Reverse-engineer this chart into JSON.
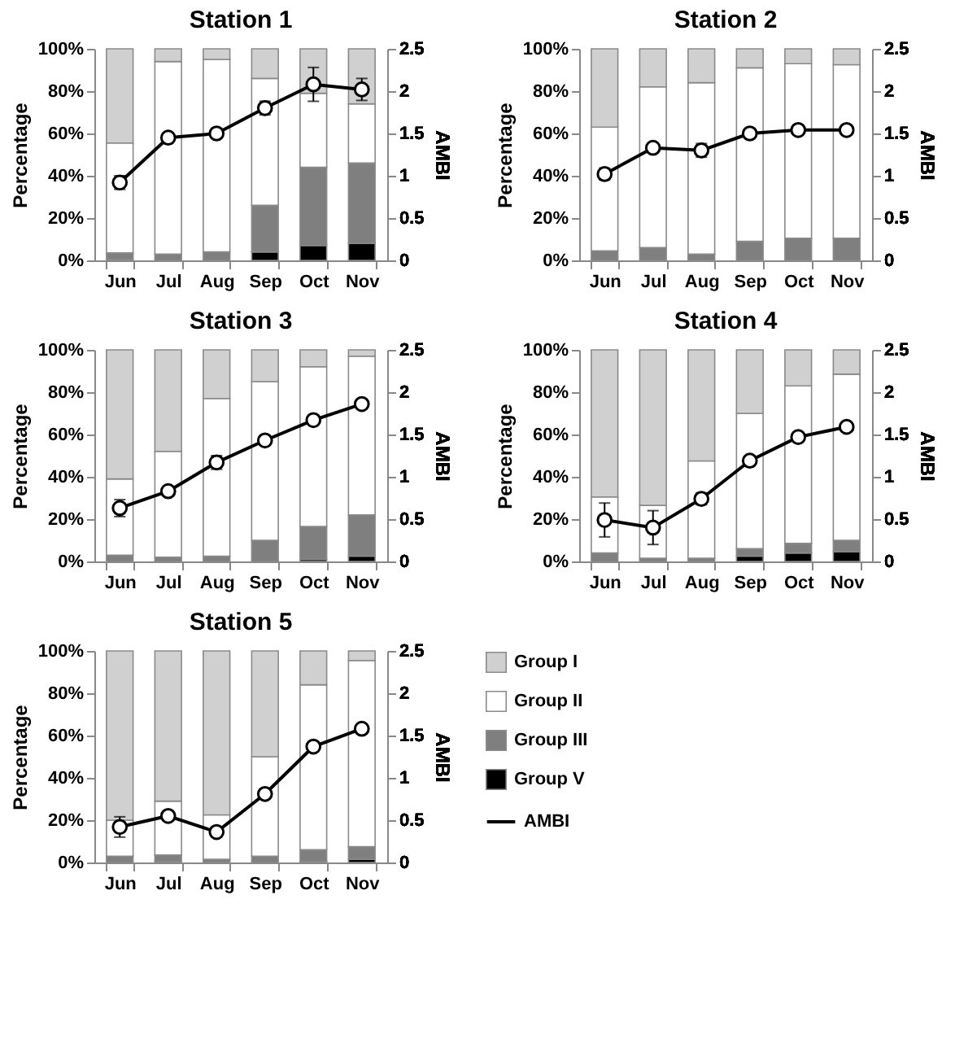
{
  "chart_data": [
    {
      "type": "bar",
      "title": "Station 1",
      "stacked": true,
      "categories": [
        "Jun",
        "Jul",
        "Aug",
        "Sep",
        "Oct",
        "Nov"
      ],
      "ylabel": "Percentage",
      "y2label": "AMBI",
      "ylim": [
        0,
        100
      ],
      "yticks": [
        {
          "value": 0,
          "label": "0%"
        },
        {
          "value": 20,
          "label": "20%"
        },
        {
          "value": 40,
          "label": "40%"
        },
        {
          "value": 60,
          "label": "60%"
        },
        {
          "value": 80,
          "label": "80%"
        },
        {
          "value": 100,
          "label": "100%"
        }
      ],
      "y2lim": [
        0,
        2.5
      ],
      "y2ticks": [
        0,
        0.5,
        1,
        1.5,
        2,
        2.5
      ],
      "series": [
        {
          "color": "#000000",
          "values": [
            0.5,
            null,
            null,
            4,
            7,
            8
          ]
        },
        {
          "color": "#7f7f7f",
          "values": [
            3,
            3,
            4,
            22,
            37,
            38
          ]
        },
        {
          "color": "#ffffff",
          "values": [
            52,
            91,
            91,
            60,
            35,
            28
          ]
        },
        {
          "color": "#d0d0d0",
          "values": [
            44.5,
            6,
            5,
            14,
            21,
            26
          ]
        },
        {
          "type": "line",
          "axis": "y2",
          "color": "#000000",
          "marker": "circle",
          "line_style": "solid",
          "values": [
            0.92,
            1.45,
            1.5,
            1.8,
            2.08,
            2.02
          ],
          "errors": [
            0.08,
            null,
            null,
            0.08,
            0.2,
            0.13
          ]
        }
      ]
    },
    {
      "type": "bar",
      "title": "Station 2",
      "stacked": true,
      "categories": [
        "Jun",
        "Jul",
        "Aug",
        "Sep",
        "Oct",
        "Nov"
      ],
      "ylabel": "Percentage",
      "y2label": "AMBI",
      "ylim": [
        0,
        100
      ],
      "yticks": [
        {
          "value": 0,
          "label": "0%"
        },
        {
          "value": 20,
          "label": "20%"
        },
        {
          "value": 40,
          "label": "40%"
        },
        {
          "value": 60,
          "label": "60%"
        },
        {
          "value": 80,
          "label": "80%"
        },
        {
          "value": 100,
          "label": "100%"
        }
      ],
      "y2lim": [
        0,
        2.5
      ],
      "y2ticks": [
        0,
        0.5,
        1,
        1.5,
        2,
        2.5
      ],
      "series": [
        {
          "color": "#7f7f7f",
          "values": [
            4.5,
            6,
            3,
            9,
            10.5,
            10.5
          ]
        },
        {
          "color": "#ffffff",
          "values": [
            58.5,
            76,
            81,
            82,
            82.5,
            82
          ]
        },
        {
          "color": "#d0d0d0",
          "values": [
            37,
            18,
            16,
            9,
            7,
            7.5
          ]
        },
        {
          "type": "line",
          "axis": "y2",
          "color": "#000000",
          "marker": "circle",
          "line_style": "solid",
          "values": [
            1.02,
            1.33,
            1.3,
            1.5,
            1.54,
            1.54
          ],
          "errors": [
            0.07,
            null,
            0.08,
            null,
            null,
            null
          ]
        }
      ]
    },
    {
      "type": "bar",
      "title": "Station 3",
      "stacked": true,
      "categories": [
        "Jun",
        "Jul",
        "Aug",
        "Sep",
        "Oct",
        "Nov"
      ],
      "ylabel": "Percentage",
      "y2label": "AMBI",
      "ylim": [
        0,
        100
      ],
      "yticks": [
        {
          "value": 0,
          "label": "0%"
        },
        {
          "value": 20,
          "label": "20%"
        },
        {
          "value": 40,
          "label": "40%"
        },
        {
          "value": 60,
          "label": "60%"
        },
        {
          "value": 80,
          "label": "80%"
        },
        {
          "value": 100,
          "label": "100%"
        }
      ],
      "y2lim": [
        0,
        2.5
      ],
      "y2ticks": [
        0,
        0.5,
        1,
        1.5,
        2,
        2.5
      ],
      "series": [
        {
          "color": "#000000",
          "values": [
            null,
            null,
            null,
            null,
            1,
            2.5
          ]
        },
        {
          "color": "#7f7f7f",
          "values": [
            3,
            2,
            2.5,
            10,
            15.5,
            19.5
          ]
        },
        {
          "color": "#ffffff",
          "values": [
            36,
            50,
            74.5,
            75,
            75.5,
            75
          ]
        },
        {
          "color": "#d0d0d0",
          "values": [
            61,
            48,
            23,
            15,
            8,
            3
          ]
        },
        {
          "type": "line",
          "axis": "y2",
          "color": "#000000",
          "marker": "circle",
          "line_style": "solid",
          "values": [
            0.63,
            0.83,
            1.17,
            1.43,
            1.67,
            1.86
          ],
          "errors": [
            0.1,
            null,
            0.08,
            null,
            null,
            null
          ]
        }
      ]
    },
    {
      "type": "bar",
      "title": "Station 4",
      "stacked": true,
      "categories": [
        "Jun",
        "Jul",
        "Aug",
        "Sep",
        "Oct",
        "Nov"
      ],
      "ylabel": "Percentage",
      "y2label": "AMBI",
      "ylim": [
        0,
        100
      ],
      "yticks": [
        {
          "value": 0,
          "label": "0%"
        },
        {
          "value": 20,
          "label": "20%"
        },
        {
          "value": 40,
          "label": "40%"
        },
        {
          "value": 60,
          "label": "60%"
        },
        {
          "value": 80,
          "label": "80%"
        },
        {
          "value": 100,
          "label": "100%"
        }
      ],
      "y2lim": [
        0,
        2.5
      ],
      "y2ticks": [
        0,
        0.5,
        1,
        1.5,
        2,
        2.5
      ],
      "series": [
        {
          "color": "#000000",
          "values": [
            null,
            null,
            null,
            2.5,
            4,
            4.5
          ]
        },
        {
          "color": "#7f7f7f",
          "values": [
            4,
            1.5,
            1.5,
            3.5,
            4.5,
            5.5
          ]
        },
        {
          "color": "#ffffff",
          "values": [
            26.5,
            25,
            46,
            64,
            74.5,
            78.5
          ]
        },
        {
          "color": "#d0d0d0",
          "values": [
            69.5,
            73.5,
            52.5,
            30,
            17,
            11.5
          ]
        },
        {
          "type": "line",
          "axis": "y2",
          "color": "#000000",
          "marker": "circle",
          "line_style": "solid",
          "values": [
            0.49,
            0.4,
            0.74,
            1.19,
            1.47,
            1.59
          ],
          "errors": [
            0.2,
            0.2,
            0.07,
            null,
            null,
            null
          ]
        }
      ]
    },
    {
      "type": "bar",
      "title": "Station 5",
      "stacked": true,
      "legend": "right",
      "categories": [
        "Jun",
        "Jul",
        "Aug",
        "Sep",
        "Oct",
        "Nov"
      ],
      "ylabel": "Percentage",
      "y2label": "AMBI",
      "ylim": [
        0,
        100
      ],
      "yticks": [
        {
          "value": 0,
          "label": "0%"
        },
        {
          "value": 20,
          "label": "20%"
        },
        {
          "value": 40,
          "label": "40%"
        },
        {
          "value": 60,
          "label": "60%"
        },
        {
          "value": 80,
          "label": "80%"
        },
        {
          "value": 100,
          "label": "100%"
        }
      ],
      "y2lim": [
        0,
        2.5
      ],
      "y2ticks": [
        0,
        0.5,
        1,
        1.5,
        2,
        2.5
      ],
      "series": [
        {
          "name": "Group V",
          "color": "#000000",
          "values": [
            null,
            0.5,
            null,
            null,
            0.5,
            1.5
          ]
        },
        {
          "name": "Group III",
          "color": "#7f7f7f",
          "values": [
            3,
            3,
            1.5,
            3,
            5.5,
            6
          ]
        },
        {
          "name": "Group II",
          "color": "#ffffff",
          "values": [
            17,
            25.5,
            21,
            47,
            78,
            88
          ]
        },
        {
          "name": "Group I",
          "color": "#d0d0d0",
          "values": [
            80,
            71,
            77.5,
            50,
            16,
            4.5
          ]
        },
        {
          "name": "AMBI",
          "type": "line",
          "axis": "y2",
          "color": "#000000",
          "marker": "circle",
          "line_style": "solid",
          "values": [
            0.42,
            0.55,
            0.36,
            0.81,
            1.37,
            1.58
          ],
          "errors": [
            0.12,
            0.05,
            null,
            0.05,
            null,
            null
          ]
        }
      ]
    }
  ]
}
